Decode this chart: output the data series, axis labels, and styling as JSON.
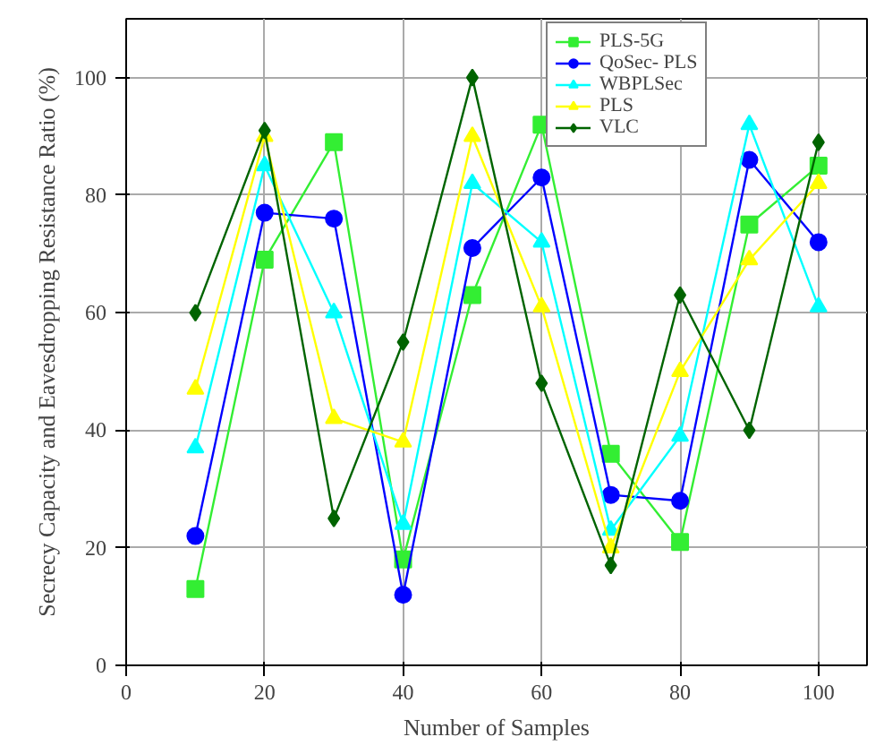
{
  "chart_data": {
    "type": "line",
    "xlabel": "Number of Samples",
    "ylabel": "Secrecy Capacity and Eavesdropping Resistance Ratio (%)",
    "x": [
      10,
      20,
      30,
      40,
      50,
      60,
      70,
      80,
      90,
      100
    ],
    "xlim": [
      0,
      107
    ],
    "xticks": [
      0,
      20,
      40,
      60,
      80,
      100
    ],
    "ylim": [
      0,
      110
    ],
    "yticks": [
      0,
      20,
      40,
      60,
      80,
      100
    ],
    "grid": true,
    "legend": "top",
    "series": [
      {
        "name": "PLS-5G",
        "color": "#33ee33",
        "marker": "square",
        "values": [
          13,
          69,
          89,
          18,
          63,
          92,
          36,
          21,
          75,
          85
        ]
      },
      {
        "name": "QoSec- PLS",
        "color": "#0000ff",
        "marker": "circle",
        "values": [
          22,
          77,
          76,
          12,
          71,
          83,
          29,
          28,
          86,
          72
        ]
      },
      {
        "name": "WBPLSec",
        "color": "#00ffff",
        "marker": "triangle",
        "values": [
          37,
          85,
          60,
          24,
          82,
          72,
          23,
          39,
          92,
          61
        ]
      },
      {
        "name": "PLS",
        "color": "#ffff00",
        "marker": "triangle",
        "values": [
          47,
          90,
          42,
          38,
          90,
          61,
          20,
          50,
          69,
          82
        ]
      },
      {
        "name": "VLC",
        "color": "#006400",
        "marker": "diamond",
        "values": [
          60,
          91,
          25,
          55,
          100,
          48,
          17,
          63,
          40,
          89
        ]
      }
    ]
  }
}
